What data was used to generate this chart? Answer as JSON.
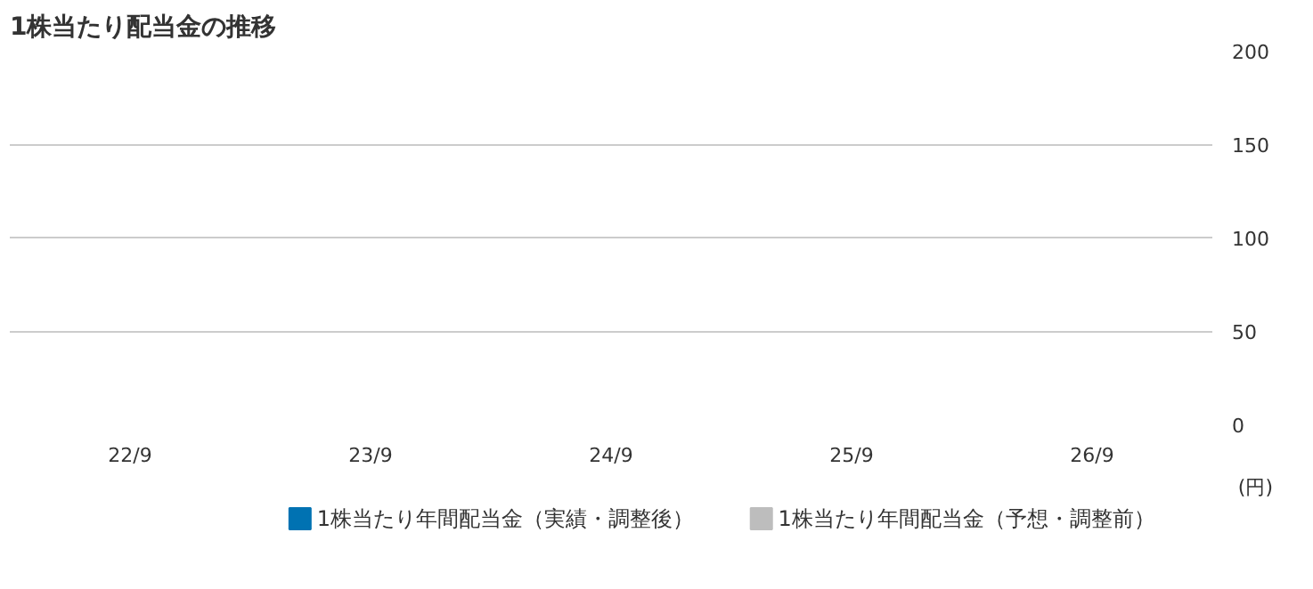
{
  "chart_data": {
    "type": "bar",
    "title": "1株当たり配当金の推移",
    "ylabel": "(円)",
    "categories": [
      "22/9",
      "23/9",
      "24/9",
      "25/9",
      "26/9"
    ],
    "series": [
      {
        "name": "1株当たり年間配当金（実績・調整後）",
        "color": "#0072b2",
        "values": [
          null,
          null,
          null,
          null,
          null
        ]
      },
      {
        "name": "1株当たり年間配当金（予想・調整前）",
        "color": "#bdbdbd",
        "values": [
          null,
          null,
          null,
          null,
          null
        ]
      }
    ],
    "ylim": [
      0,
      200
    ],
    "yticks": [
      0,
      50,
      100,
      150,
      200
    ],
    "grid": "y",
    "legend": "bottom right"
  }
}
